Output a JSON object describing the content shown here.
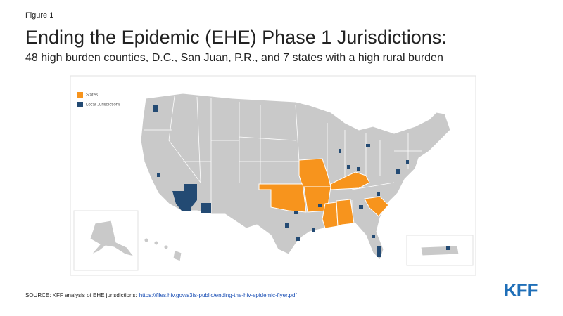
{
  "header": {
    "figure_label": "Figure 1",
    "title": "Ending the Epidemic (EHE) Phase 1 Jurisdictions:",
    "subtitle": "48 high burden counties, D.C., San Juan, P.R., and 7 states with a high rural burden"
  },
  "legend": {
    "items": [
      {
        "label": "States",
        "color": "#f7941d"
      },
      {
        "label": "Local Jurisdictions",
        "color": "#234a73"
      }
    ]
  },
  "footer": {
    "source": "SOURCE: KFF analysis of EHE jurisdictions:",
    "link": "https://files.hiv.gov/s3fs-public/ending-the-hiv-epidemic-flyer.pdf",
    "logo": "KFF"
  }
}
